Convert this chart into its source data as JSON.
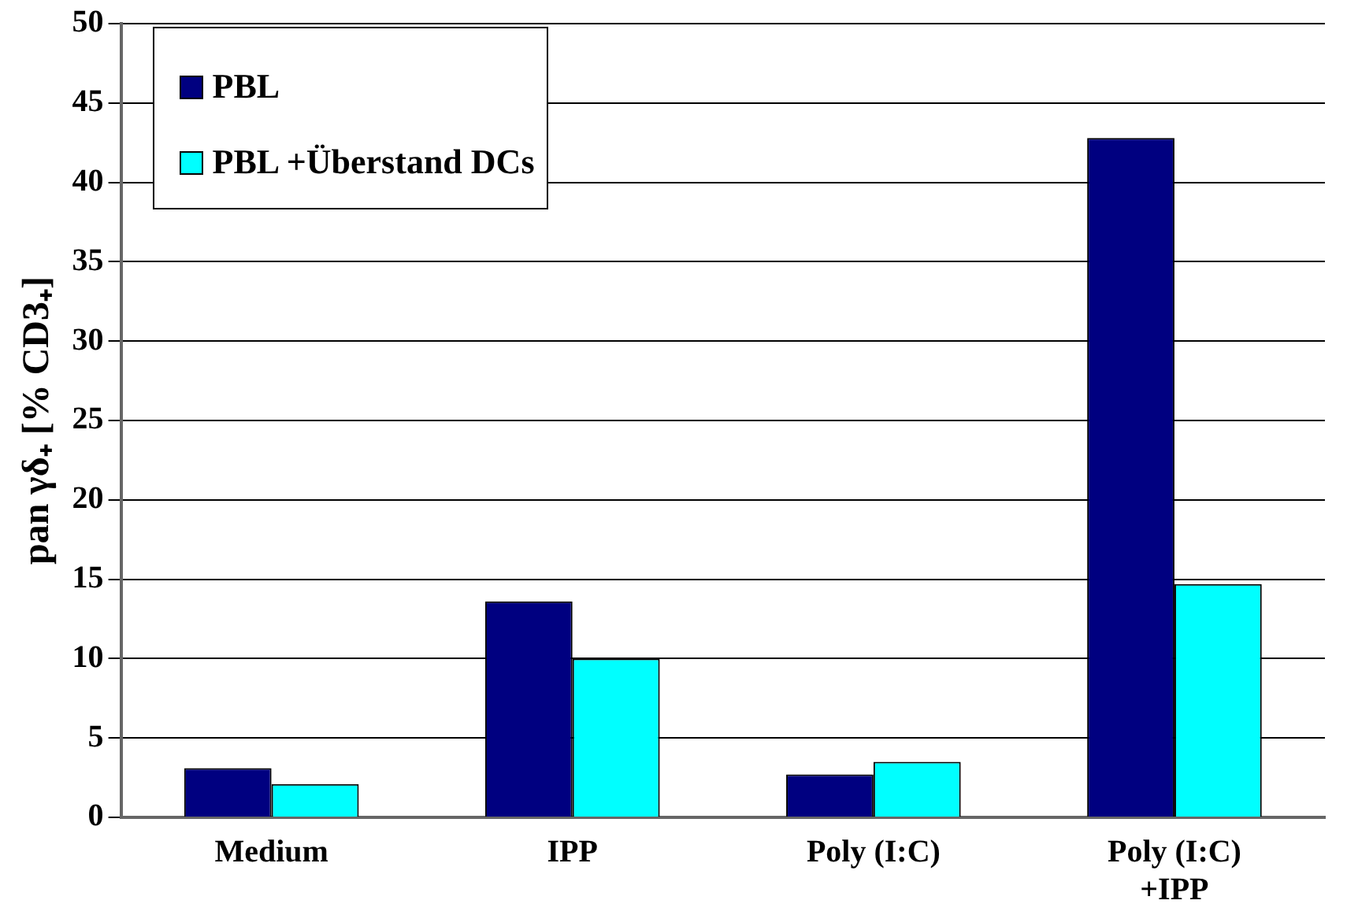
{
  "chart_data": {
    "type": "bar",
    "ylabel": "pan γδ₊ [% CD3₊]",
    "categories": [
      "Medium",
      "IPP",
      "Poly (I:C)",
      "Poly (I:C) +IPP"
    ],
    "series": [
      {
        "name": "PBL",
        "color": "#000080",
        "values": [
          3.1,
          13.6,
          2.7,
          42.8
        ]
      },
      {
        "name": "PBL +Überstand DCs",
        "color": "#00ffff",
        "values": [
          2.1,
          10.0,
          3.5,
          14.7
        ]
      }
    ],
    "ylim": [
      0,
      50
    ],
    "yticks": [
      0,
      5,
      10,
      15,
      20,
      25,
      30,
      35,
      40,
      45,
      50
    ],
    "grid": "y",
    "legend": "top left"
  }
}
